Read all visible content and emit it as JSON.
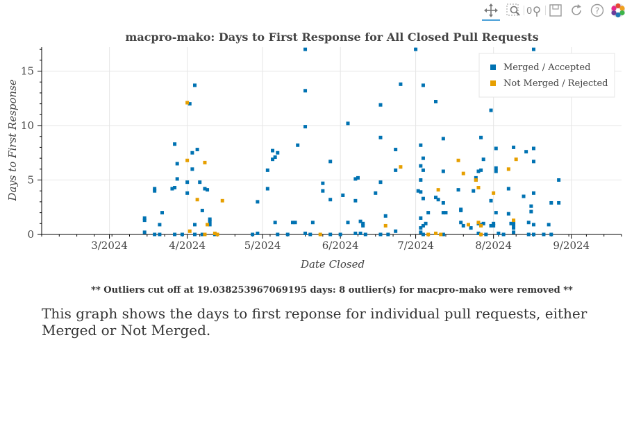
{
  "toolbar": {
    "tools": [
      "pan-icon",
      "box-zoom-icon",
      "wheel-zoom-icon",
      "save-icon",
      "reset-icon",
      "help-icon",
      "bokeh-logo-icon"
    ]
  },
  "caption": "This graph shows the days to first reponse for individual pull requests, either Merged or Not Merged.",
  "chart_data": {
    "type": "scatter",
    "title": "macpro-mako: Days to First Response for All Closed Pull Requests",
    "xlabel": "Date Closed",
    "ylabel": "Days to First Response",
    "footnote": "** Outliers cut off at 19.038253967069195 days: 8 outlier(s) for macpro-mako were removed **",
    "x_axis_type": "datetime",
    "xlim": [
      "2024-02-03",
      "2024-09-21"
    ],
    "ylim": [
      0,
      17.2
    ],
    "xticks": [
      {
        "date": "2024-03-01",
        "label": "3/2024"
      },
      {
        "date": "2024-04-01",
        "label": "4/2024"
      },
      {
        "date": "2024-05-01",
        "label": "5/2024"
      },
      {
        "date": "2024-06-01",
        "label": "6/2024"
      },
      {
        "date": "2024-07-01",
        "label": "7/2024"
      },
      {
        "date": "2024-08-01",
        "label": "8/2024"
      },
      {
        "date": "2024-09-01",
        "label": "9/2024"
      }
    ],
    "yticks": [
      0,
      5,
      10,
      15
    ],
    "grid": true,
    "legend_position": "top-right",
    "series": [
      {
        "name": "Merged / Accepted",
        "color": "#0072b2",
        "points": [
          [
            "2024-03-15",
            1.5
          ],
          [
            "2024-03-15",
            1.3
          ],
          [
            "2024-03-15",
            0.2
          ],
          [
            "2024-03-19",
            4.0
          ],
          [
            "2024-03-19",
            4.2
          ],
          [
            "2024-03-19",
            0.0
          ],
          [
            "2024-03-21",
            0.9
          ],
          [
            "2024-03-22",
            2.0
          ],
          [
            "2024-03-21",
            0.0
          ],
          [
            "2024-03-26",
            4.2
          ],
          [
            "2024-03-27",
            4.3
          ],
          [
            "2024-03-27",
            8.3
          ],
          [
            "2024-03-28",
            6.5
          ],
          [
            "2024-03-28",
            5.1
          ],
          [
            "2024-03-27",
            0.0
          ],
          [
            "2024-03-30",
            0.0
          ],
          [
            "2024-04-01",
            4.8
          ],
          [
            "2024-04-01",
            3.8
          ],
          [
            "2024-04-02",
            12.0
          ],
          [
            "2024-04-03",
            6.0
          ],
          [
            "2024-04-03",
            7.5
          ],
          [
            "2024-04-04",
            13.7
          ],
          [
            "2024-04-04",
            0.9
          ],
          [
            "2024-04-05",
            7.8
          ],
          [
            "2024-04-06",
            4.8
          ],
          [
            "2024-04-07",
            2.2
          ],
          [
            "2024-04-08",
            4.2
          ],
          [
            "2024-04-09",
            4.1
          ],
          [
            "2024-04-10",
            1.4
          ],
          [
            "2024-04-10",
            1.2
          ],
          [
            "2024-04-10",
            0.9
          ],
          [
            "2024-04-07",
            0.0
          ],
          [
            "2024-04-04",
            0.0
          ],
          [
            "2024-04-12",
            0.0
          ],
          [
            "2024-04-27",
            0.0
          ],
          [
            "2024-04-29",
            3.0
          ],
          [
            "2024-04-29",
            0.1
          ],
          [
            "2024-05-03",
            5.9
          ],
          [
            "2024-05-03",
            4.2
          ],
          [
            "2024-05-05",
            7.7
          ],
          [
            "2024-05-05",
            6.9
          ],
          [
            "2024-05-06",
            7.1
          ],
          [
            "2024-05-07",
            7.5
          ],
          [
            "2024-05-06",
            1.1
          ],
          [
            "2024-05-07",
            0.0
          ],
          [
            "2024-05-11",
            0.0
          ],
          [
            "2024-05-13",
            1.1
          ],
          [
            "2024-05-14",
            1.1
          ],
          [
            "2024-05-15",
            8.2
          ],
          [
            "2024-05-18",
            17.0
          ],
          [
            "2024-05-18",
            13.2
          ],
          [
            "2024-05-18",
            9.9
          ],
          [
            "2024-05-18",
            0.1
          ],
          [
            "2024-05-21",
            1.1
          ],
          [
            "2024-05-20",
            0.0
          ],
          [
            "2024-05-25",
            4.7
          ],
          [
            "2024-05-25",
            4.0
          ],
          [
            "2024-05-28",
            6.7
          ],
          [
            "2024-05-28",
            3.2
          ],
          [
            "2024-05-28",
            0.0
          ],
          [
            "2024-06-02",
            3.6
          ],
          [
            "2024-06-04",
            10.2
          ],
          [
            "2024-06-04",
            1.1
          ],
          [
            "2024-06-01",
            0.0
          ],
          [
            "2024-06-07",
            5.1
          ],
          [
            "2024-06-08",
            5.2
          ],
          [
            "2024-06-07",
            3.1
          ],
          [
            "2024-06-09",
            1.2
          ],
          [
            "2024-06-10",
            1.0
          ],
          [
            "2024-06-10",
            0.8
          ],
          [
            "2024-06-07",
            0.1
          ],
          [
            "2024-06-09",
            0.1
          ],
          [
            "2024-06-11",
            0.0
          ],
          [
            "2024-06-15",
            3.8
          ],
          [
            "2024-06-17",
            11.9
          ],
          [
            "2024-06-17",
            8.9
          ],
          [
            "2024-06-17",
            4.8
          ],
          [
            "2024-06-19",
            1.7
          ],
          [
            "2024-06-17",
            0.0
          ],
          [
            "2024-06-23",
            7.8
          ],
          [
            "2024-06-23",
            5.9
          ],
          [
            "2024-06-23",
            0.3
          ],
          [
            "2024-06-25",
            13.8
          ],
          [
            "2024-06-20",
            0.0
          ],
          [
            "2024-07-04",
            13.7
          ],
          [
            "2024-07-04",
            3.3
          ],
          [
            "2024-07-01",
            17.0
          ],
          [
            "2024-07-03",
            8.2
          ],
          [
            "2024-07-03",
            6.3
          ],
          [
            "2024-07-04",
            7.0
          ],
          [
            "2024-07-04",
            5.9
          ],
          [
            "2024-07-03",
            5.0
          ],
          [
            "2024-07-02",
            4.0
          ],
          [
            "2024-07-03",
            3.9
          ],
          [
            "2024-07-03",
            1.5
          ],
          [
            "2024-07-05",
            1.0
          ],
          [
            "2024-07-04",
            0.8
          ],
          [
            "2024-07-03",
            0.6
          ],
          [
            "2024-07-03",
            0.2
          ],
          [
            "2024-07-04",
            0.0
          ],
          [
            "2024-07-06",
            2.0
          ],
          [
            "2024-07-09",
            12.2
          ],
          [
            "2024-07-09",
            3.4
          ],
          [
            "2024-07-10",
            3.2
          ],
          [
            "2024-07-12",
            8.8
          ],
          [
            "2024-07-12",
            5.8
          ],
          [
            "2024-07-12",
            2.9
          ],
          [
            "2024-07-12",
            2.0
          ],
          [
            "2024-07-13",
            2.0
          ],
          [
            "2024-07-12",
            0.0
          ],
          [
            "2024-07-18",
            4.1
          ],
          [
            "2024-07-19",
            2.3
          ],
          [
            "2024-07-19",
            2.2
          ],
          [
            "2024-07-19",
            1.1
          ],
          [
            "2024-07-20",
            0.8
          ],
          [
            "2024-07-23",
            0.6
          ],
          [
            "2024-07-24",
            4.0
          ],
          [
            "2024-07-25",
            5.0
          ],
          [
            "2024-07-25",
            5.2
          ],
          [
            "2024-07-26",
            5.8
          ],
          [
            "2024-07-27",
            5.9
          ],
          [
            "2024-07-27",
            12.9
          ],
          [
            "2024-07-27",
            8.9
          ],
          [
            "2024-07-28",
            6.9
          ],
          [
            "2024-07-26",
            1.0
          ],
          [
            "2024-07-27",
            0.9
          ],
          [
            "2024-07-28",
            1.0
          ],
          [
            "2024-07-26",
            0.1
          ],
          [
            "2024-07-29",
            0.0
          ],
          [
            "2024-07-31",
            11.4
          ],
          [
            "2024-07-31",
            3.1
          ],
          [
            "2024-08-01",
            1.0
          ],
          [
            "2024-08-01",
            0.8
          ],
          [
            "2024-07-31",
            0.8
          ],
          [
            "2024-08-02",
            7.9
          ],
          [
            "2024-08-02",
            6.1
          ],
          [
            "2024-08-02",
            5.8
          ],
          [
            "2024-08-02",
            2.0
          ],
          [
            "2024-08-03",
            0.1
          ],
          [
            "2024-08-05",
            0.0
          ],
          [
            "2024-08-07",
            4.2
          ],
          [
            "2024-08-07",
            1.9
          ],
          [
            "2024-08-08",
            1.0
          ],
          [
            "2024-08-09",
            8.0
          ],
          [
            "2024-08-09",
            1.1
          ],
          [
            "2024-08-09",
            0.9
          ],
          [
            "2024-08-09",
            0.6
          ],
          [
            "2024-08-09",
            0.2
          ],
          [
            "2024-08-13",
            3.5
          ],
          [
            "2024-08-14",
            7.6
          ],
          [
            "2024-08-15",
            1.1
          ],
          [
            "2024-08-15",
            0.0
          ],
          [
            "2024-08-17",
            7.9
          ],
          [
            "2024-08-17",
            6.7
          ],
          [
            "2024-08-17",
            3.8
          ],
          [
            "2024-08-16",
            2.6
          ],
          [
            "2024-08-16",
            2.1
          ],
          [
            "2024-08-17",
            0.9
          ],
          [
            "2024-08-17",
            0.0
          ],
          [
            "2024-08-17",
            17.0
          ],
          [
            "2024-08-24",
            2.9
          ],
          [
            "2024-08-23",
            0.9
          ],
          [
            "2024-08-21",
            0.0
          ],
          [
            "2024-08-24",
            0.0
          ],
          [
            "2024-08-27",
            5.0
          ],
          [
            "2024-08-27",
            2.9
          ]
        ]
      },
      {
        "name": "Not Merged / Rejected",
        "color": "#e69f00",
        "points": [
          [
            "2024-04-01",
            12.1
          ],
          [
            "2024-04-01",
            6.8
          ],
          [
            "2024-04-02",
            0.3
          ],
          [
            "2024-04-05",
            3.2
          ],
          [
            "2024-04-08",
            6.6
          ],
          [
            "2024-04-09",
            0.9
          ],
          [
            "2024-04-08",
            0.0
          ],
          [
            "2024-04-13",
            0.0
          ],
          [
            "2024-04-15",
            3.1
          ],
          [
            "2024-05-24",
            0.0
          ],
          [
            "2024-06-19",
            0.8
          ],
          [
            "2024-06-25",
            6.2
          ],
          [
            "2024-07-09",
            0.1
          ],
          [
            "2024-07-10",
            4.1
          ],
          [
            "2024-07-11",
            0.0
          ],
          [
            "2024-07-18",
            6.8
          ],
          [
            "2024-07-20",
            5.6
          ],
          [
            "2024-07-22",
            0.9
          ],
          [
            "2024-07-25",
            5.0
          ],
          [
            "2024-07-26",
            4.3
          ],
          [
            "2024-07-26",
            1.1
          ],
          [
            "2024-07-27",
            0.8
          ],
          [
            "2024-07-27",
            0.0
          ],
          [
            "2024-08-01",
            3.8
          ],
          [
            "2024-08-07",
            6.0
          ],
          [
            "2024-08-09",
            1.3
          ],
          [
            "2024-08-10",
            6.9
          ],
          [
            "2024-07-06",
            0.0
          ],
          [
            "2024-04-12",
            0.1
          ]
        ]
      }
    ]
  }
}
